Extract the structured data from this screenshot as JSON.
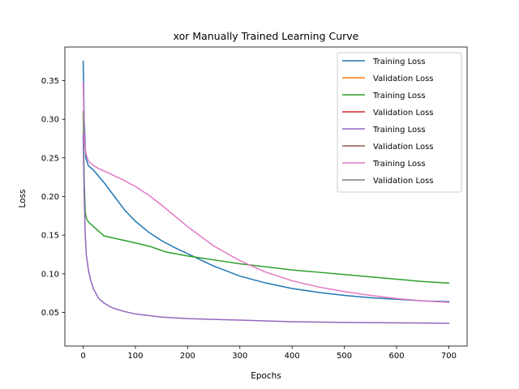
{
  "chart_data": {
    "type": "line",
    "title": "xor Manually Trained Learning Curve",
    "xlabel": "Epochs",
    "ylabel": "Loss",
    "xlim": [
      -35,
      735
    ],
    "ylim": [
      0.0065,
      0.3935
    ],
    "xticks": [
      0,
      100,
      200,
      300,
      400,
      500,
      600,
      700
    ],
    "yticks": [
      0.05,
      0.1,
      0.15,
      0.2,
      0.25,
      0.3,
      0.35
    ],
    "ytick_labels": [
      "0.05",
      "0.10",
      "0.15",
      "0.20",
      "0.25",
      "0.30",
      "0.35"
    ],
    "grid": false,
    "legend_position": "top-right",
    "series": [
      {
        "name": "Training Loss",
        "color": "#1f77b4",
        "x": [
          0,
          2,
          5,
          10,
          20,
          40,
          60,
          80,
          100,
          125,
          150,
          175,
          200,
          250,
          300,
          350,
          400,
          450,
          500,
          550,
          600,
          650,
          700
        ],
        "y": [
          0.375,
          0.3,
          0.25,
          0.24,
          0.234,
          0.218,
          0.2,
          0.182,
          0.168,
          0.154,
          0.143,
          0.134,
          0.126,
          0.11,
          0.097,
          0.088,
          0.081,
          0.076,
          0.072,
          0.069,
          0.067,
          0.065,
          0.064
        ]
      },
      {
        "name": "Validation Loss",
        "color": "#ff7f0e",
        "x": [],
        "y": []
      },
      {
        "name": "Training Loss",
        "color": "#2ca02c",
        "x": [
          0,
          2,
          4,
          6,
          10,
          20,
          30,
          40,
          60,
          80,
          100,
          130,
          160,
          200,
          250,
          300,
          350,
          400,
          450,
          500,
          550,
          600,
          650,
          700
        ],
        "y": [
          0.31,
          0.22,
          0.18,
          0.172,
          0.167,
          0.161,
          0.155,
          0.149,
          0.146,
          0.143,
          0.14,
          0.135,
          0.128,
          0.123,
          0.118,
          0.113,
          0.109,
          0.105,
          0.102,
          0.099,
          0.096,
          0.093,
          0.09,
          0.088
        ]
      },
      {
        "name": "Validation Loss",
        "color": "#d62728",
        "x": [],
        "y": []
      },
      {
        "name": "Training Loss",
        "color": "#9467bd",
        "x": [
          0,
          2,
          4,
          6,
          10,
          15,
          20,
          30,
          40,
          50,
          60,
          80,
          100,
          150,
          200,
          300,
          400,
          500,
          600,
          700
        ],
        "y": [
          0.28,
          0.2,
          0.15,
          0.125,
          0.105,
          0.09,
          0.08,
          0.068,
          0.062,
          0.058,
          0.055,
          0.051,
          0.048,
          0.044,
          0.042,
          0.04,
          0.038,
          0.037,
          0.0365,
          0.036
        ]
      },
      {
        "name": "Validation Loss",
        "color": "#8c564b",
        "x": [],
        "y": []
      },
      {
        "name": "Training Loss",
        "color": "#e377c2",
        "x": [
          0,
          2,
          4,
          6,
          10,
          20,
          30,
          50,
          75,
          100,
          125,
          150,
          175,
          200,
          250,
          300,
          350,
          400,
          450,
          500,
          550,
          600,
          650,
          700
        ],
        "y": [
          0.347,
          0.28,
          0.262,
          0.254,
          0.246,
          0.24,
          0.236,
          0.23,
          0.222,
          0.213,
          0.202,
          0.189,
          0.175,
          0.161,
          0.136,
          0.117,
          0.102,
          0.091,
          0.083,
          0.077,
          0.072,
          0.068,
          0.065,
          0.063
        ]
      },
      {
        "name": "Validation Loss",
        "color": "#7f7f7f",
        "x": [],
        "y": []
      }
    ]
  }
}
